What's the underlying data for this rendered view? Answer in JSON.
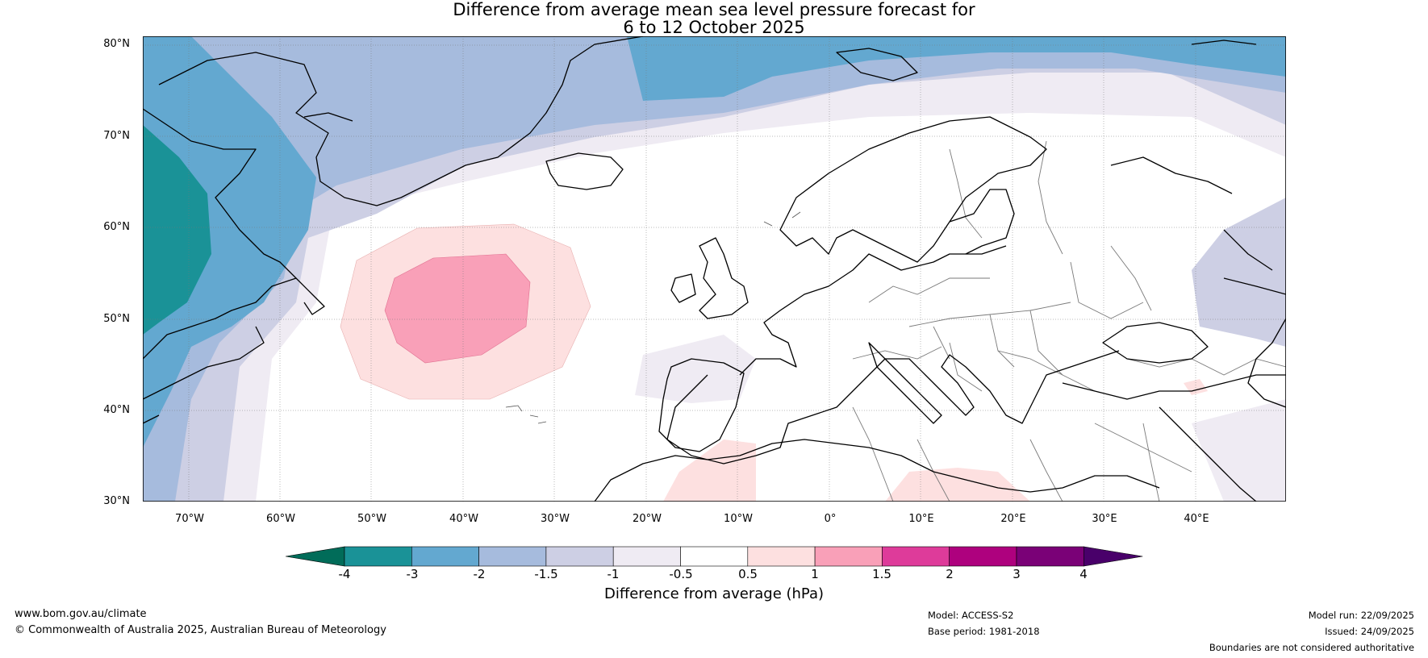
{
  "title": {
    "line1": "Difference from average mean sea level pressure forecast for",
    "line2": "6 to 12 October 2025"
  },
  "latitudes": [
    "80°N",
    "70°N",
    "60°N",
    "50°N",
    "40°N",
    "30°N"
  ],
  "longitudes": [
    "70°W",
    "60°W",
    "50°W",
    "40°W",
    "30°W",
    "20°W",
    "10°W",
    "0°",
    "10°E",
    "20°E",
    "30°E",
    "40°E"
  ],
  "colorbar": {
    "ticks": [
      "-4",
      "-3",
      "-2",
      "-1.5",
      "-1",
      "-0.5",
      "0.5",
      "1",
      "1.5",
      "2",
      "3",
      "4"
    ],
    "colors": [
      "#1a9297",
      "#63a8d0",
      "#a6bbdd",
      "#cdcfe4",
      "#efebf3",
      "#ffffff",
      "#fde0e0",
      "#f9a0b8",
      "#de3b9a",
      "#ae017e",
      "#7a0177"
    ],
    "under_color": "#016c59",
    "over_color": "#49006a",
    "label": "Difference from average (hPa)"
  },
  "footer": {
    "website": "www.bom.gov.au/climate",
    "copyright": "© Commonwealth of Australia 2025, Australian Bureau of Meteorology",
    "model": "Model: ACCESS-S2",
    "base_period": "Base period: 1981-2018",
    "model_run": "Model run: 22/09/2025",
    "issued": "Issued: 24/09/2025",
    "disclaimer": "Boundaries are not considered authoritative"
  }
}
